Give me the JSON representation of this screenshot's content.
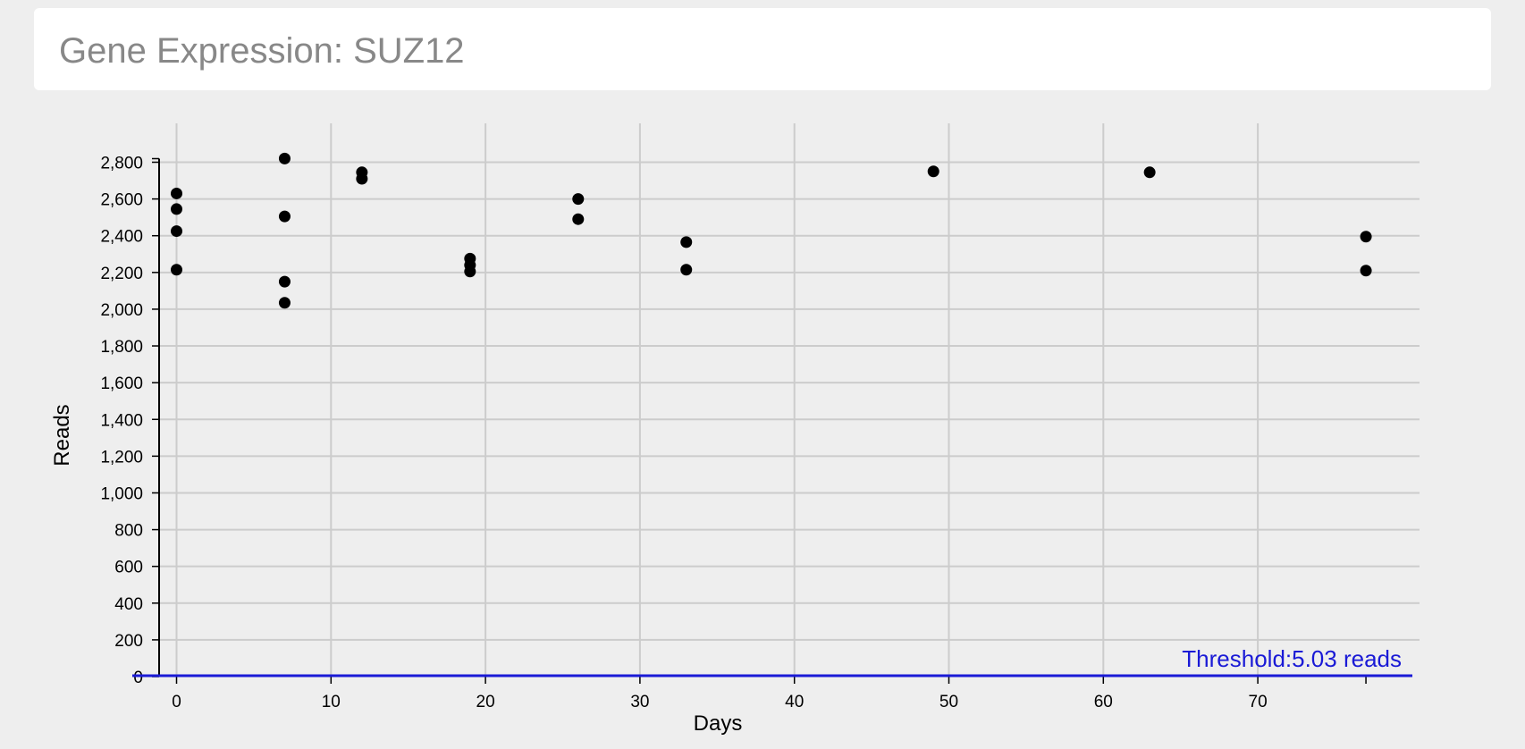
{
  "header": {
    "title": "Gene Expression: SUZ12"
  },
  "chart_data": {
    "type": "scatter",
    "xlabel": "Days",
    "ylabel": "Reads",
    "xlim": [
      -1.5,
      80.5
    ],
    "ylim": [
      0,
      2800
    ],
    "x_ticks": [
      0,
      10,
      20,
      30,
      40,
      50,
      60,
      70
    ],
    "y_ticks": [
      0,
      200,
      400,
      600,
      800,
      1000,
      1200,
      1400,
      1600,
      1800,
      2000,
      2200,
      2400,
      2600,
      2800
    ],
    "grid": true,
    "points": [
      {
        "x": 0,
        "y": 2630
      },
      {
        "x": 0,
        "y": 2545
      },
      {
        "x": 0,
        "y": 2425
      },
      {
        "x": 0,
        "y": 2215
      },
      {
        "x": 7,
        "y": 2820
      },
      {
        "x": 7,
        "y": 2505
      },
      {
        "x": 7,
        "y": 2150
      },
      {
        "x": 7,
        "y": 2035
      },
      {
        "x": 12,
        "y": 2745
      },
      {
        "x": 12,
        "y": 2710
      },
      {
        "x": 19,
        "y": 2275
      },
      {
        "x": 19,
        "y": 2240
      },
      {
        "x": 19,
        "y": 2205
      },
      {
        "x": 26,
        "y": 2600
      },
      {
        "x": 26,
        "y": 2490
      },
      {
        "x": 33,
        "y": 2365
      },
      {
        "x": 33,
        "y": 2215
      },
      {
        "x": 49,
        "y": 2750
      },
      {
        "x": 63,
        "y": 2745
      },
      {
        "x": 77,
        "y": 2395
      },
      {
        "x": 77,
        "y": 2210
      }
    ],
    "threshold": {
      "value": 5.03,
      "label": "Threshold:5.03 reads",
      "color": "#1a1ad6"
    },
    "point_color": "#000000",
    "grid_color": "#cccccc"
  }
}
